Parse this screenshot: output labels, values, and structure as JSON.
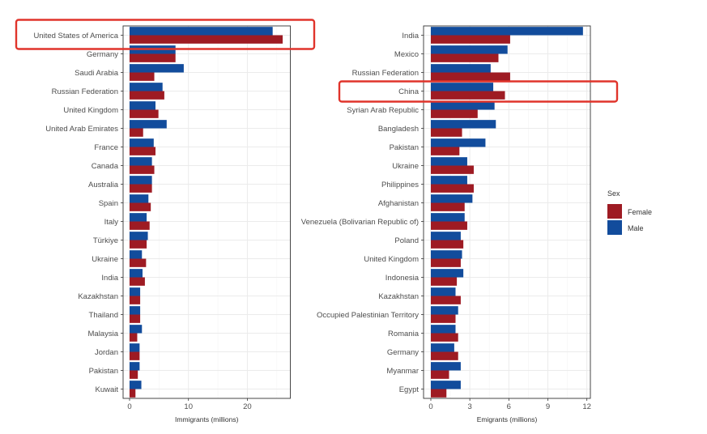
{
  "chart_data": [
    {
      "type": "bar",
      "orientation": "horizontal",
      "grouped": true,
      "title": "",
      "xlabel": "Immigrants (millions)",
      "ylabel": "",
      "xlim": [
        -1.1,
        27.3
      ],
      "xticks": [
        0,
        10,
        20
      ],
      "grid": true,
      "categories": [
        "United States of America",
        "Germany",
        "Saudi Arabia",
        "Russian Federation",
        "United Kingdom",
        "United Arab Emirates",
        "France",
        "Canada",
        "Australia",
        "Spain",
        "Italy",
        "Türkiye",
        "Ukraine",
        "India",
        "Kazakhstan",
        "Thailand",
        "Malaysia",
        "Jordan",
        "Pakistan",
        "Kuwait"
      ],
      "series": [
        {
          "name": "Male",
          "values": [
            24.3,
            7.8,
            9.2,
            5.6,
            4.4,
            6.3,
            4.1,
            3.8,
            3.8,
            3.2,
            2.9,
            3.1,
            2.1,
            2.2,
            1.8,
            1.8,
            2.1,
            1.7,
            1.7,
            2.0
          ]
        },
        {
          "name": "Female",
          "values": [
            26.0,
            7.8,
            4.2,
            5.9,
            4.9,
            2.3,
            4.4,
            4.2,
            3.8,
            3.6,
            3.4,
            2.9,
            2.8,
            2.6,
            1.8,
            1.8,
            1.3,
            1.7,
            1.4,
            1.0
          ]
        }
      ],
      "highlight": "United States of America"
    },
    {
      "type": "bar",
      "orientation": "horizontal",
      "grouped": true,
      "title": "",
      "xlabel": "Emigrants (millions)",
      "ylabel": "",
      "xlim": [
        -0.56,
        12.27
      ],
      "xticks": [
        0,
        3,
        6,
        9,
        12
      ],
      "grid": true,
      "categories": [
        "India",
        "Mexico",
        "Russian Federation",
        "China",
        "Syrian Arab Republic",
        "Bangladesh",
        "Pakistan",
        "Ukraine",
        "Philippines",
        "Afghanistan",
        "Venezuela (Bolivarian Republic of)",
        "Poland",
        "United Kingdom",
        "Indonesia",
        "Kazakhstan",
        "Occupied Palestinian Territory",
        "Romania",
        "Germany",
        "Myanmar",
        "Egypt"
      ],
      "series": [
        {
          "name": "Male",
          "values": [
            11.7,
            5.9,
            4.6,
            4.8,
            4.9,
            5.0,
            4.2,
            2.8,
            2.8,
            3.2,
            2.6,
            2.3,
            2.4,
            2.5,
            1.9,
            2.1,
            1.9,
            1.8,
            2.3,
            2.3
          ]
        },
        {
          "name": "Female",
          "values": [
            6.1,
            5.2,
            6.1,
            5.7,
            3.6,
            2.4,
            2.2,
            3.3,
            3.3,
            2.6,
            2.8,
            2.5,
            2.3,
            2.0,
            2.3,
            1.9,
            2.1,
            2.1,
            1.4,
            1.2
          ]
        }
      ],
      "highlight": "China"
    }
  ],
  "legend": {
    "title": "Sex",
    "placement": "right",
    "items": [
      {
        "label": "Female",
        "color": "#9e1b23"
      },
      {
        "label": "Male",
        "color": "#124c9c"
      }
    ]
  },
  "colors": {
    "male": "#124c9c",
    "female": "#9e1b23",
    "highlight": "#e0342b"
  }
}
